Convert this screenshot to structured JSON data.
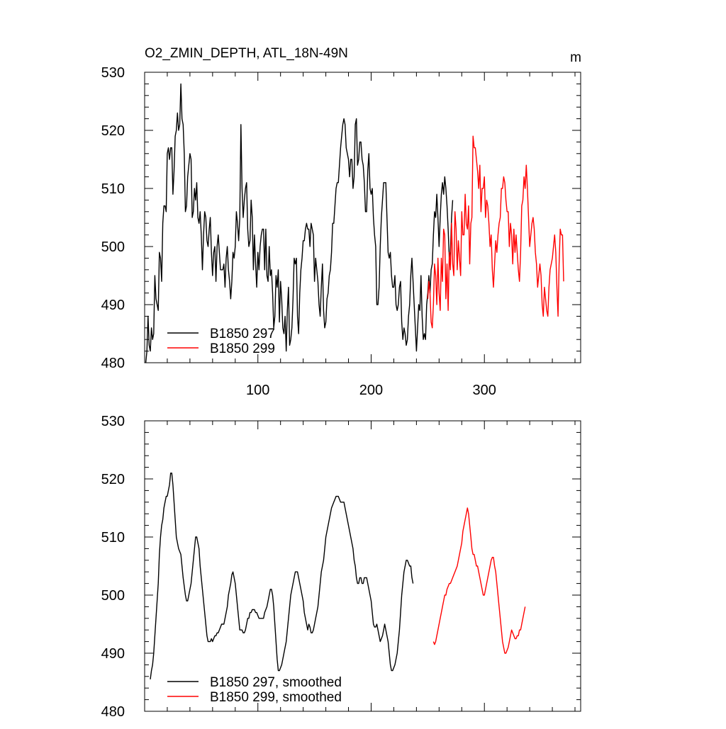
{
  "chart_data": [
    {
      "type": "line",
      "title": "O2_ZMIN_DEPTH, ATL_18N-49N",
      "units": "m",
      "xlim": [
        0,
        385
      ],
      "ylim": [
        480,
        530
      ],
      "yticks": [
        480,
        490,
        500,
        510,
        520,
        530
      ],
      "xticks": [
        100,
        200,
        300
      ],
      "legend_position": "bottom-left",
      "series": [
        {
          "name": "B1850 297",
          "color": "#000000",
          "x_start": 1,
          "values": [
            480,
            482,
            488,
            483,
            482,
            486,
            484,
            485,
            495,
            491,
            490,
            489,
            499,
            498,
            494,
            504,
            507,
            507,
            506,
            516,
            517,
            515,
            517,
            517,
            509,
            513,
            519,
            520,
            523,
            520,
            521,
            528,
            522,
            521,
            516,
            506,
            507,
            512,
            514,
            516,
            515,
            505,
            506,
            510,
            508,
            511,
            505,
            504,
            506,
            502,
            496,
            502,
            506,
            505,
            501,
            500,
            503,
            505,
            499,
            495,
            499,
            500,
            494,
            500,
            502,
            499,
            496,
            496,
            496,
            497,
            493,
            498,
            500,
            496,
            494,
            491,
            494,
            499,
            498,
            500,
            506,
            504,
            501,
            505,
            521,
            510,
            505,
            508,
            510,
            511,
            503,
            500,
            501,
            508,
            505,
            496,
            502,
            497,
            493,
            499,
            496,
            500,
            502,
            503,
            503,
            496,
            503,
            495,
            494,
            500,
            495,
            496,
            492,
            486,
            488,
            495,
            493,
            496,
            487,
            494,
            491,
            486,
            485,
            488,
            482,
            489,
            493,
            483,
            484,
            486,
            491,
            498,
            497,
            498,
            488,
            485,
            492,
            496,
            498,
            501,
            501,
            503,
            504,
            503,
            503,
            500,
            504,
            503,
            502,
            494,
            498,
            496,
            494,
            490,
            488,
            493,
            497,
            489,
            486,
            487,
            491,
            492,
            495,
            496,
            499,
            504,
            504,
            507,
            510,
            511,
            511,
            514,
            517,
            519,
            521,
            522,
            521,
            517,
            516,
            515,
            512,
            515,
            515,
            510,
            512,
            521,
            522,
            514,
            515,
            518,
            518,
            515,
            514,
            511,
            506,
            506,
            513,
            516,
            510,
            509,
            510,
            505,
            502,
            500,
            490,
            490,
            493,
            500,
            505,
            508,
            511,
            511,
            511,
            505,
            499,
            498,
            499,
            495,
            493,
            493,
            495,
            490,
            489,
            490,
            493,
            494,
            487,
            484,
            486,
            485,
            483,
            484,
            488,
            490,
            495,
            498,
            494,
            490,
            486,
            482,
            486,
            490,
            489,
            495,
            488,
            484,
            485,
            484,
            490,
            492,
            495,
            492,
            496,
            497,
            502,
            506,
            505,
            509,
            505,
            500,
            505,
            509,
            511,
            509,
            512,
            510,
            507,
            503,
            498,
            499,
            505,
            508
          ]
        },
        {
          "name": "B1850 299",
          "color": "#ff0000",
          "x_start": 250,
          "values": [
            491,
            494,
            492,
            487,
            486,
            490,
            497,
            495,
            490,
            498,
            492,
            489,
            498,
            494,
            503,
            502,
            491,
            497,
            489,
            499,
            496,
            504,
            497,
            495,
            506,
            503,
            496,
            501,
            498,
            495,
            506,
            502,
            502,
            509,
            504,
            503,
            507,
            497,
            504,
            505,
            519,
            517,
            517,
            515,
            513,
            510,
            514,
            506,
            510,
            510,
            512,
            505,
            508,
            507,
            504,
            500,
            502,
            496,
            493,
            497,
            501,
            499,
            502,
            504,
            505,
            510,
            510,
            512,
            511,
            508,
            506,
            506,
            500,
            504,
            502,
            497,
            503,
            499,
            502,
            499,
            496,
            494,
            499,
            507,
            508,
            512,
            510,
            514,
            510,
            505,
            500,
            502,
            504,
            505,
            503,
            499,
            497,
            493,
            495,
            497,
            495,
            490,
            488,
            493,
            491,
            489,
            488,
            493,
            496,
            497,
            498,
            500,
            502,
            499,
            493,
            488,
            497,
            503,
            502,
            502,
            494
          ]
        }
      ]
    },
    {
      "type": "line",
      "title": "",
      "units": "",
      "xlim": [
        0,
        385
      ],
      "ylim": [
        480,
        530
      ],
      "yticks": [
        480,
        490,
        500,
        510,
        520,
        530
      ],
      "xticks": [
        100,
        200,
        300
      ],
      "legend_position": "bottom-left",
      "series": [
        {
          "name": "B1850 297, smoothed",
          "color": "#000000",
          "x_start": 5,
          "values": [
            485.5,
            487,
            488,
            490,
            493,
            496,
            499,
            502,
            507,
            510,
            512,
            513,
            515,
            516,
            517,
            517,
            518,
            519,
            521,
            521,
            519,
            516,
            513,
            510,
            509,
            508,
            507.5,
            507,
            505,
            503,
            501.5,
            500,
            499,
            499,
            500,
            501,
            502,
            504,
            506,
            508,
            510,
            510,
            509,
            508,
            505,
            503,
            501,
            499,
            497,
            495,
            493,
            492,
            492,
            492,
            492.5,
            492,
            492.5,
            493,
            493,
            493.5,
            493.5,
            494,
            494.5,
            495,
            495,
            495,
            496,
            497,
            498,
            500,
            501,
            502,
            503.5,
            504,
            503,
            502,
            500,
            498,
            496,
            494,
            494,
            494,
            493.5,
            493.5,
            494,
            495,
            496,
            496,
            497,
            497,
            497.5,
            497.5,
            497.5,
            497,
            497,
            496.5,
            496,
            496,
            496,
            496,
            496,
            497,
            497.5,
            498,
            499,
            500,
            501,
            501,
            500,
            498,
            495,
            492,
            489,
            487,
            487,
            487.5,
            488,
            489,
            490,
            491,
            492,
            494,
            496,
            498,
            500,
            501,
            502,
            503,
            504,
            504,
            504,
            503,
            502,
            501,
            500,
            499,
            497,
            496,
            495,
            494,
            495,
            494.5,
            493.5,
            493.5,
            494,
            495,
            496,
            497,
            498,
            500,
            502,
            504,
            505,
            506,
            508,
            510,
            511,
            512,
            513,
            514,
            515,
            515.5,
            516,
            516.5,
            517,
            517,
            517,
            516.5,
            516,
            516,
            516,
            516,
            515,
            514,
            513,
            512,
            511,
            510,
            509,
            508,
            506,
            505,
            503,
            502,
            502,
            503,
            503,
            502,
            502,
            503,
            503,
            503,
            502,
            501,
            500,
            499,
            497,
            495,
            494.5,
            494.5,
            495,
            494,
            493,
            492,
            492.5,
            493,
            494,
            495,
            494,
            493,
            492,
            490,
            488,
            487,
            487,
            487.5,
            488,
            489,
            490,
            492,
            494,
            497,
            500,
            502,
            504,
            505,
            506,
            506,
            505.5,
            505,
            505,
            503,
            502
          ]
        },
        {
          "name": "B1850 299, smoothed",
          "color": "#ff0000",
          "x_start": 255,
          "values": [
            492,
            491.5,
            492,
            493,
            494,
            495,
            496,
            497,
            498,
            499,
            500,
            500,
            501,
            501.5,
            502,
            502,
            502.5,
            503,
            503.5,
            504,
            504.5,
            505,
            506,
            507,
            508,
            509,
            511,
            512,
            513,
            514,
            515,
            514,
            512,
            510,
            508,
            507,
            507,
            506,
            505,
            505,
            504,
            503,
            502,
            501,
            500,
            500,
            501,
            502,
            503,
            504,
            505,
            506,
            506.5,
            506.5,
            505,
            504,
            502,
            500,
            498,
            496,
            494,
            492,
            491,
            490,
            490,
            490.5,
            491,
            492,
            493,
            494,
            493.5,
            493,
            492.5,
            492.5,
            493,
            493,
            494,
            494,
            495,
            496,
            497,
            498
          ]
        }
      ]
    }
  ]
}
